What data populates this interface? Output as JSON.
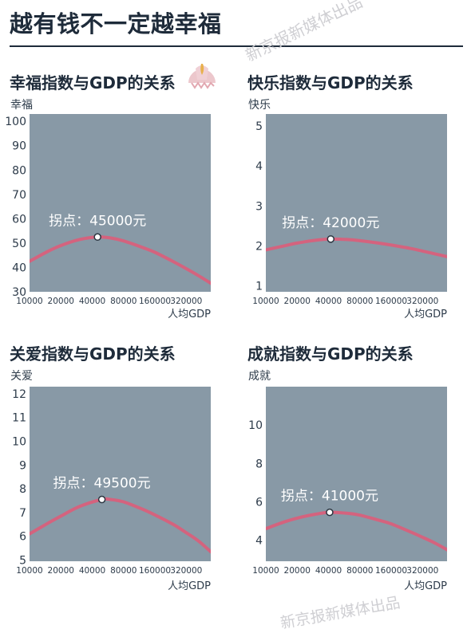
{
  "header": {
    "title": "越有钱不一定越幸福",
    "watermark": "新京报新媒体出品"
  },
  "colors": {
    "plot_bg": "#8899a6",
    "curve": "#d4637e",
    "title": "#1e2b3a"
  },
  "chart_data": [
    {
      "type": "line",
      "title": "幸福指数与GDP的关系",
      "ylabel": "幸福",
      "xlabel": "人均GDP",
      "x_scale": "log",
      "x_ticks": [
        10000,
        20000,
        40000,
        80000,
        160000,
        320000
      ],
      "x_tick_labels": [
        "10000",
        "20000",
        "40000",
        "80000",
        "160000",
        "320000"
      ],
      "xlim": [
        10000,
        550000
      ],
      "y_ticks": [
        30,
        40,
        50,
        60,
        70,
        80,
        90,
        100
      ],
      "ylim": [
        30,
        103
      ],
      "x": [
        10000,
        15000,
        20000,
        30000,
        45000,
        60000,
        80000,
        120000,
        160000,
        240000,
        320000,
        420000,
        550000
      ],
      "y": [
        42.5,
        46.6,
        49.0,
        51.4,
        52.5,
        52.1,
        50.9,
        48.3,
        46.2,
        42.4,
        39.5,
        36.6,
        33.5
      ],
      "annotation": {
        "label": "拐点：45000元",
        "x": 45000,
        "y": 52.5
      }
    },
    {
      "type": "line",
      "title": "快乐指数与GDP的关系",
      "ylabel": "快乐",
      "xlabel": "人均GDP",
      "x_scale": "log",
      "x_ticks": [
        10000,
        20000,
        40000,
        80000,
        160000,
        320000
      ],
      "x_tick_labels": [
        "10000",
        "20000",
        "40000",
        "80000",
        "160000",
        "320000"
      ],
      "xlim": [
        10000,
        550000
      ],
      "y_ticks": [
        1,
        2,
        3,
        4,
        5
      ],
      "ylim": [
        0.85,
        5.3
      ],
      "x": [
        10000,
        15000,
        20000,
        30000,
        42000,
        60000,
        80000,
        120000,
        160000,
        240000,
        320000,
        420000,
        550000
      ],
      "y": [
        1.9,
        2.0,
        2.07,
        2.14,
        2.17,
        2.16,
        2.13,
        2.07,
        2.02,
        1.94,
        1.87,
        1.8,
        1.73
      ],
      "annotation": {
        "label": "拐点：42000元",
        "x": 42000,
        "y": 2.17
      }
    },
    {
      "type": "line",
      "title": "关爱指数与GDP的关系",
      "ylabel": "关爱",
      "xlabel": "人均GDP",
      "x_scale": "log",
      "x_ticks": [
        10000,
        20000,
        40000,
        80000,
        160000,
        320000
      ],
      "x_tick_labels": [
        "10000",
        "20000",
        "40000",
        "80000",
        "160000",
        "320000"
      ],
      "xlim": [
        10000,
        550000
      ],
      "y_ticks": [
        5,
        6,
        7,
        8,
        9,
        10,
        11,
        12
      ],
      "ylim": [
        4.95,
        12.3
      ],
      "x": [
        10000,
        15000,
        20000,
        30000,
        49500,
        60000,
        80000,
        120000,
        160000,
        240000,
        320000,
        420000,
        550000
      ],
      "y": [
        6.1,
        6.55,
        6.85,
        7.25,
        7.55,
        7.55,
        7.45,
        7.15,
        6.9,
        6.5,
        6.15,
        5.8,
        5.35
      ],
      "annotation": {
        "label": "拐点：49500元",
        "x": 49500,
        "y": 7.55
      }
    },
    {
      "type": "line",
      "title": "成就指数与GDP的关系",
      "ylabel": "成就",
      "xlabel": "人均GDP",
      "x_scale": "log",
      "x_ticks": [
        10000,
        20000,
        40000,
        80000,
        160000,
        320000
      ],
      "x_tick_labels": [
        "10000",
        "20000",
        "40000",
        "80000",
        "160000",
        "320000"
      ],
      "xlim": [
        10000,
        550000
      ],
      "y_ticks": [
        4,
        6,
        8,
        10
      ],
      "ylim": [
        2.9,
        12.0
      ],
      "x": [
        10000,
        15000,
        20000,
        30000,
        41000,
        60000,
        80000,
        120000,
        160000,
        240000,
        320000,
        420000,
        550000
      ],
      "y": [
        4.6,
        4.95,
        5.15,
        5.35,
        5.45,
        5.4,
        5.3,
        5.05,
        4.85,
        4.45,
        4.15,
        3.85,
        3.5
      ],
      "annotation": {
        "label": "拐点：41000元",
        "x": 41000,
        "y": 5.45
      }
    }
  ]
}
